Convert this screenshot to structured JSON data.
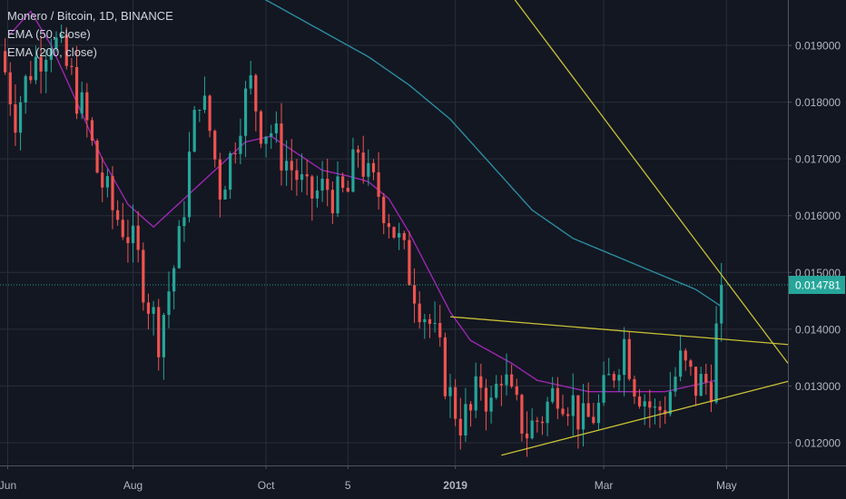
{
  "chart_data": {
    "type": "candlestick",
    "title": "Monero / Bitcoin, 1D, BINANCE",
    "indicators": [
      {
        "name": "EMA (50, close)",
        "color": "#9c27b0"
      },
      {
        "name": "EMA (200, close)",
        "color": "#2b8c9e"
      }
    ],
    "ylim": [
      0.0116,
      0.0198
    ],
    "y_ticks": [
      "0.019000",
      "0.018000",
      "0.017000",
      "0.016000",
      "0.015000",
      "0.014000",
      "0.013000",
      "0.012000"
    ],
    "y_tick_values": [
      0.019,
      0.018,
      0.017,
      0.016,
      0.015,
      0.014,
      0.013,
      0.012
    ],
    "x_ticks": [
      "Jun",
      "Aug",
      "Oct",
      "5",
      "2019",
      "Mar",
      "May"
    ],
    "last_price": "0.014781",
    "last_price_value": 0.014781,
    "colors": {
      "up": "#26a69a",
      "down": "#ef5350",
      "trendline": "#c7c035",
      "background": "#131722",
      "grid": "#2a2e39",
      "axis_text": "#b2b5be",
      "price_label": "#26a69a"
    },
    "close_path": [
      [
        0,
        0.0189
      ],
      [
        3,
        0.0178
      ],
      [
        6,
        0.0186
      ],
      [
        10,
        0.0192
      ],
      [
        14,
        0.0184
      ],
      [
        17,
        0.0176
      ],
      [
        19,
        0.0168
      ],
      [
        22,
        0.0161
      ],
      [
        25,
        0.0157
      ],
      [
        27,
        0.0152
      ],
      [
        29,
        0.0145
      ],
      [
        31,
        0.0139
      ],
      [
        33,
        0.0147
      ],
      [
        35,
        0.0155
      ],
      [
        37,
        0.017
      ],
      [
        39,
        0.0182
      ],
      [
        41,
        0.0175
      ],
      [
        43,
        0.0165
      ],
      [
        45,
        0.017
      ],
      [
        47,
        0.0178
      ],
      [
        49,
        0.0183
      ],
      [
        51,
        0.0176
      ],
      [
        53,
        0.0175
      ],
      [
        55,
        0.0171
      ],
      [
        58,
        0.0167
      ],
      [
        60,
        0.0163
      ],
      [
        62,
        0.0164
      ],
      [
        64,
        0.0165
      ],
      [
        66,
        0.0163
      ],
      [
        68,
        0.0164
      ],
      [
        70,
        0.0172
      ],
      [
        72,
        0.0166
      ],
      [
        74,
        0.0164
      ],
      [
        76,
        0.016
      ],
      [
        78,
        0.0155
      ],
      [
        80,
        0.015
      ],
      [
        82,
        0.0145
      ],
      [
        84,
        0.0141
      ],
      [
        86,
        0.0135
      ],
      [
        88,
        0.0128
      ],
      [
        90,
        0.0124
      ],
      [
        92,
        0.0125
      ],
      [
        94,
        0.0131
      ],
      [
        96,
        0.0126
      ],
      [
        98,
        0.0133
      ],
      [
        100,
        0.0127
      ],
      [
        103,
        0.0122
      ],
      [
        106,
        0.0125
      ],
      [
        109,
        0.013
      ],
      [
        112,
        0.0127
      ],
      [
        114,
        0.0123
      ],
      [
        117,
        0.0126
      ],
      [
        120,
        0.0133
      ],
      [
        122,
        0.0138
      ],
      [
        124,
        0.0131
      ],
      [
        126,
        0.0128
      ],
      [
        128,
        0.0125
      ],
      [
        130,
        0.0127
      ],
      [
        133,
        0.0134
      ],
      [
        136,
        0.013
      ],
      [
        139,
        0.0131
      ],
      [
        141,
        0.01478
      ]
    ],
    "ema50_path": [
      [
        2,
        0.0192
      ],
      [
        6,
        0.0196
      ],
      [
        10,
        0.019
      ],
      [
        15,
        0.018
      ],
      [
        20,
        0.017
      ],
      [
        25,
        0.0162
      ],
      [
        30,
        0.0158
      ],
      [
        36,
        0.0163
      ],
      [
        42,
        0.0168
      ],
      [
        48,
        0.0173
      ],
      [
        53,
        0.0174
      ],
      [
        58,
        0.0171
      ],
      [
        63,
        0.0168
      ],
      [
        68,
        0.0167
      ],
      [
        72,
        0.0166
      ],
      [
        76,
        0.0163
      ],
      [
        80,
        0.0157
      ],
      [
        84,
        0.015
      ],
      [
        88,
        0.0143
      ],
      [
        92,
        0.0138
      ],
      [
        96,
        0.0136
      ],
      [
        100,
        0.0134
      ],
      [
        105,
        0.0131
      ],
      [
        110,
        0.013
      ],
      [
        115,
        0.0129
      ],
      [
        120,
        0.0129
      ],
      [
        125,
        0.0129
      ],
      [
        130,
        0.0129
      ],
      [
        135,
        0.013
      ],
      [
        140,
        0.0131
      ]
    ],
    "ema200_path": [
      [
        48,
        0.02
      ],
      [
        56,
        0.0196
      ],
      [
        64,
        0.0192
      ],
      [
        72,
        0.0188
      ],
      [
        80,
        0.0183
      ],
      [
        88,
        0.0177
      ],
      [
        96,
        0.0169
      ],
      [
        104,
        0.0161
      ],
      [
        112,
        0.0156
      ],
      [
        120,
        0.0153
      ],
      [
        128,
        0.015
      ],
      [
        136,
        0.0147
      ],
      [
        141,
        0.0144
      ]
    ],
    "trendlines": [
      {
        "from": [
          99,
          0.02
        ],
        "to": [
          154,
          0.0134
        ]
      },
      {
        "from": [
          88,
          0.01422
        ],
        "to": [
          154,
          0.01373
        ]
      },
      {
        "from": [
          98,
          0.01178
        ],
        "to": [
          154,
          0.01308
        ]
      }
    ]
  }
}
